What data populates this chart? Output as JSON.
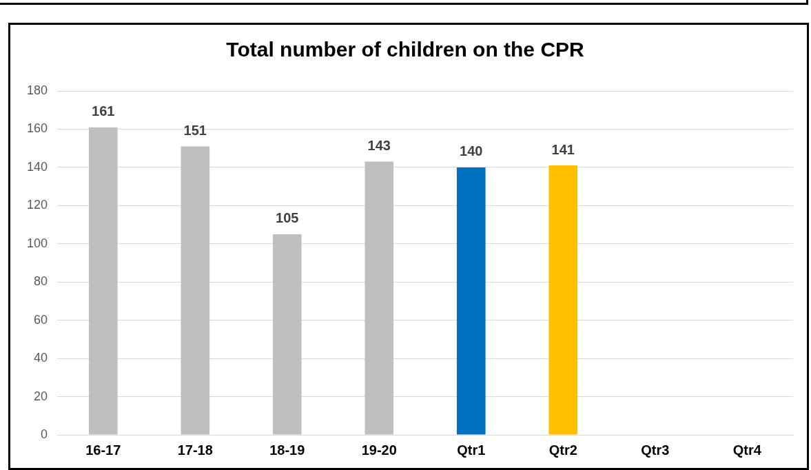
{
  "chart_data": {
    "type": "bar",
    "title": "Total number of children on the CPR",
    "categories": [
      "16-17",
      "17-18",
      "18-19",
      "19-20",
      "Qtr1",
      "Qtr2",
      "Qtr3",
      "Qtr4"
    ],
    "values": [
      161,
      151,
      105,
      143,
      140,
      141,
      null,
      null
    ],
    "colors": [
      "#bfbfbf",
      "#bfbfbf",
      "#bfbfbf",
      "#bfbfbf",
      "#0070c0",
      "#ffc000",
      "#bfbfbf",
      "#bfbfbf"
    ],
    "ylim": [
      0,
      180
    ],
    "yticks": [
      0,
      20,
      40,
      60,
      80,
      100,
      120,
      140,
      160,
      180
    ],
    "grid": "y",
    "data_labels": true
  }
}
